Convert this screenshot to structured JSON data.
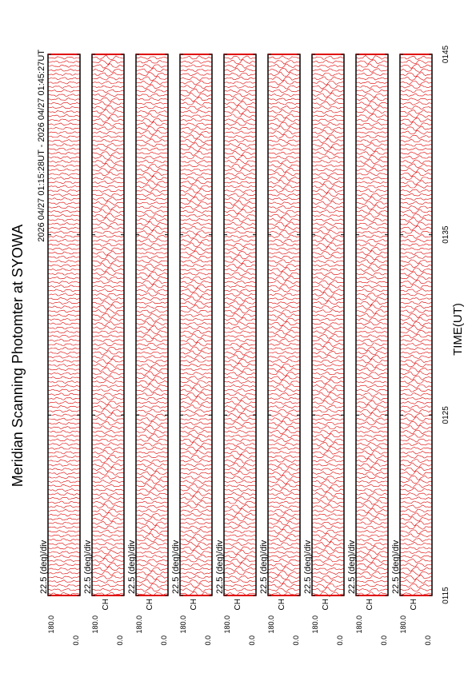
{
  "title": "Meridian Scanning Photomter at SYOWA",
  "time_range": "2026 04/27 01:15:28UT - 2026 04/27 01:45:27UT",
  "x_label": "TIME(UT)",
  "x_ticks": [
    "0115",
    "0125",
    "0135",
    "0145"
  ],
  "panels": [
    {
      "scale": "22.5 (deg)/div",
      "y_max": "180.0",
      "y_min": "0.0"
    },
    {
      "scale": "22.5 (deg)/div",
      "y_max": "180.0",
      "y_min": "0.0",
      "channel": "CH"
    },
    {
      "scale": "22.5 (deg)/div",
      "y_max": "180.0",
      "y_min": "0.0",
      "channel": "CH"
    },
    {
      "scale": "22.5 (deg)/div",
      "y_max": "180.0",
      "y_min": "0.0",
      "channel": "CH"
    },
    {
      "scale": "22.5 (deg)/div",
      "y_max": "180.0",
      "y_min": "0.0",
      "channel": "CH"
    },
    {
      "scale": "22.5 (deg)/div",
      "y_max": "180.0",
      "y_min": "0.0",
      "channel": "CH"
    },
    {
      "scale": "22.5 (deg)/div",
      "y_max": "180.0",
      "y_min": "0.0",
      "channel": "CH"
    },
    {
      "scale": "22.5 (deg)/div",
      "y_max": "180.0",
      "y_min": "0.0",
      "channel": "CH"
    },
    {
      "scale": "22.5 (deg)/div",
      "y_max": "180.0",
      "y_min": "0.0",
      "channel": "CH"
    }
  ]
}
